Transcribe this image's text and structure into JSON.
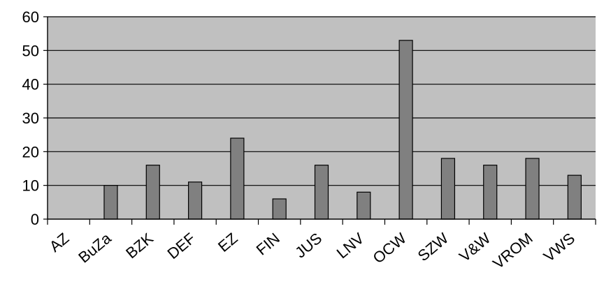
{
  "chart_data": {
    "type": "bar",
    "title": "",
    "xlabel": "",
    "ylabel": "",
    "ylim": [
      0,
      60
    ],
    "yticks": [
      0,
      10,
      20,
      30,
      40,
      50,
      60
    ],
    "grid": true,
    "legend": "none",
    "categories": [
      "AZ",
      "BuZa",
      "BZK",
      "DEF",
      "EZ",
      "FIN",
      "JUS",
      "LNV",
      "OCW",
      "SZW",
      "V&W",
      "VROM",
      "VWS"
    ],
    "values": [
      0,
      10,
      16,
      11,
      24,
      6,
      16,
      8,
      53,
      18,
      16,
      18,
      13
    ],
    "colors": {
      "plot_background": "#c0c0c0",
      "bar_fill": "#808080",
      "bar_stroke": "#000000",
      "gridline": "#000000"
    }
  }
}
